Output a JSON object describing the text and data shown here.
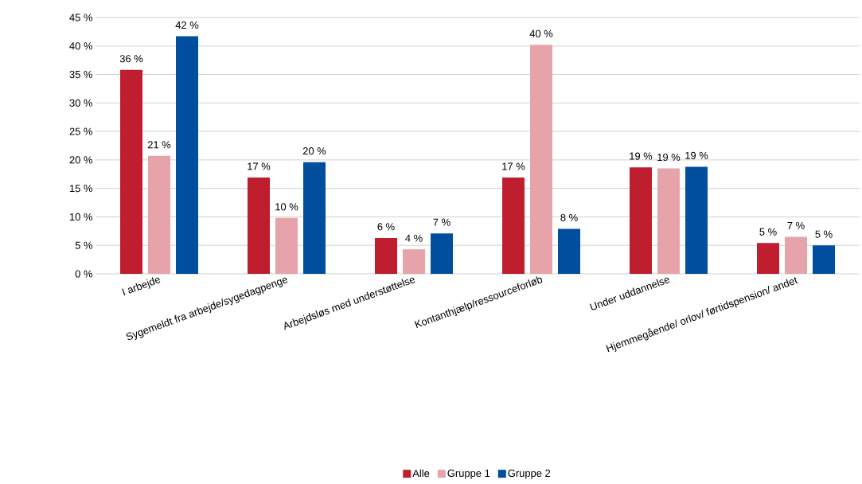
{
  "chart_data": {
    "type": "bar",
    "categories": [
      "I arbejde",
      "Sygemeldt fra arbejde/sygedagpenge",
      "Arbejdsløs med understøttelse",
      "Kontanthjælp/ressourceforløb",
      "Under uddannelse",
      "Hjemmegående/ orlov/ førtidspension/ andet"
    ],
    "series": [
      {
        "name": "Alle",
        "color": "#be1e2d",
        "values": [
          35.8,
          16.9,
          6.3,
          16.9,
          18.7,
          5.4
        ],
        "value_labels": [
          "36 %",
          "17 %",
          "6 %",
          "17 %",
          "19 %",
          "5 %"
        ]
      },
      {
        "name": "Gruppe 1",
        "color": "#e6a4aa",
        "values": [
          20.7,
          9.8,
          4.3,
          40.2,
          18.5,
          6.5
        ],
        "value_labels": [
          "21 %",
          "10 %",
          "4 %",
          "40 %",
          "19 %",
          "7 %"
        ]
      },
      {
        "name": "Gruppe 2",
        "color": "#004f9f",
        "values": [
          41.7,
          19.6,
          7.1,
          7.9,
          18.8,
          5.0
        ],
        "value_labels": [
          "42 %",
          "20 %",
          "7 %",
          "8 %",
          "19 %",
          "5 %"
        ]
      }
    ],
    "ylim": [
      0,
      45
    ],
    "yticks": [
      {
        "value": 0,
        "label": "0 %"
      },
      {
        "value": 5,
        "label": "5 %"
      },
      {
        "value": 10,
        "label": "10 %"
      },
      {
        "value": 15,
        "label": "15 %"
      },
      {
        "value": 20,
        "label": "20 %"
      },
      {
        "value": 25,
        "label": "25 %"
      },
      {
        "value": 30,
        "label": "30 %"
      },
      {
        "value": 35,
        "label": "35 %"
      },
      {
        "value": 40,
        "label": "40 %"
      },
      {
        "value": 45,
        "label": "45 %"
      }
    ],
    "grid": "y",
    "legend": "bottom"
  }
}
